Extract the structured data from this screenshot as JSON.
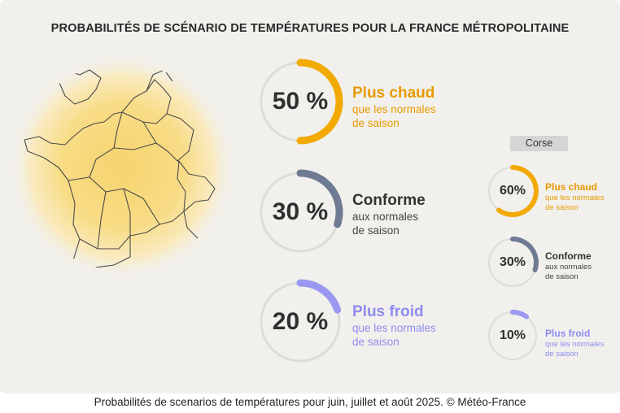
{
  "title": "PROBABILITÉS DE SCÉNARIO DE TEMPÉRATURES POUR LA FRANCE MÉTROPOLITAINE",
  "caption": "Probabilités de scenarios de températures pour juin, juillet et août 2025. © Météo-France",
  "corse_label": "Corse",
  "colors": {
    "warm": "#f2a900",
    "normal": "#6e7b92",
    "cold": "#9a98f0",
    "ring": "#dcdcda"
  },
  "chart_data": [
    {
      "type": "pie",
      "scope": "France métropolitaine",
      "categories": [
        "Plus chaud",
        "Conforme",
        "Plus froid"
      ],
      "values": [
        50,
        30,
        20
      ],
      "unit": "%",
      "labels": [
        {
          "pct": "50 %",
          "title": "Plus chaud",
          "sub1": "que les normales",
          "sub2": "de saison"
        },
        {
          "pct": "30 %",
          "title": "Conforme",
          "sub1": "aux normales",
          "sub2": "de saison"
        },
        {
          "pct": "20 %",
          "title": "Plus froid",
          "sub1": "que les normales",
          "sub2": "de saison"
        }
      ]
    },
    {
      "type": "pie",
      "scope": "Corse",
      "categories": [
        "Plus chaud",
        "Conforme",
        "Plus froid"
      ],
      "values": [
        60,
        30,
        10
      ],
      "unit": "%",
      "labels": [
        {
          "pct": "60%",
          "title": "Plus chaud",
          "sub1": "que les normales",
          "sub2": "de saison"
        },
        {
          "pct": "30%",
          "title": "Conforme",
          "sub1": "aux normales",
          "sub2": "de saison"
        },
        {
          "pct": "10%",
          "title": "Plus froid",
          "sub1": "que les normales",
          "sub2": "de saison"
        }
      ]
    }
  ]
}
